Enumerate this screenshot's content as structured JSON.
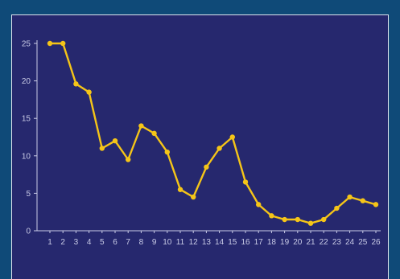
{
  "chart_data": {
    "type": "line",
    "title": "",
    "xlabel": "",
    "ylabel": "",
    "x": [
      1,
      2,
      3,
      4,
      5,
      6,
      7,
      8,
      9,
      10,
      11,
      12,
      13,
      14,
      15,
      16,
      17,
      18,
      19,
      20,
      21,
      22,
      23,
      24,
      25,
      26
    ],
    "series": [
      {
        "values": [
          25,
          25,
          19.6,
          18.5,
          11,
          12,
          9.5,
          14,
          13,
          10.5,
          5.5,
          4.5,
          8.5,
          11,
          12.5,
          6.5,
          3.5,
          2,
          1.5,
          1.5,
          1,
          1.5,
          3,
          4.5,
          4,
          3.5
        ]
      }
    ],
    "yticks": [
      0,
      5,
      10,
      15,
      20,
      25
    ],
    "ylim": [
      0,
      25
    ],
    "grid": false,
    "colors": {
      "background": "#0f4a78",
      "plot_area": "#26286e",
      "line": "#f5c518",
      "axis": "#c9cbe6"
    }
  }
}
